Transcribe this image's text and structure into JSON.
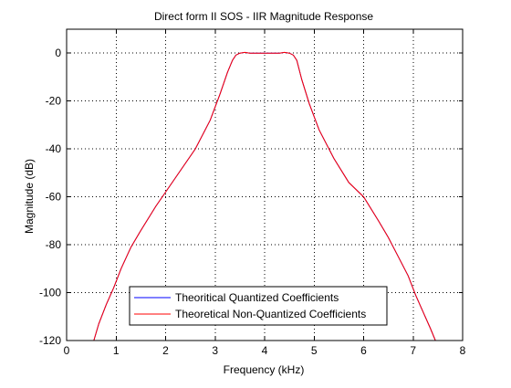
{
  "chart_data": {
    "type": "line",
    "title": "Direct form II SOS - IIR Magnitude Response",
    "xlabel": "Frequency (kHz)",
    "ylabel": "Magnitude (dB)",
    "xlim": [
      0,
      8
    ],
    "ylim": [
      -120,
      10
    ],
    "xticks": [
      0,
      1,
      2,
      3,
      4,
      5,
      6,
      7,
      8
    ],
    "yticks": [
      0,
      -20,
      -40,
      -60,
      -80,
      -100,
      -120
    ],
    "grid": true,
    "legend_position": "bottom-left",
    "series": [
      {
        "name": "Theoritical Quantized Coefficients",
        "color": "#0000ff",
        "x": [
          0.55,
          0.65,
          0.8,
          0.95,
          1.1,
          1.3,
          1.5,
          1.8,
          2.0,
          2.3,
          2.6,
          2.9,
          3.1,
          3.25,
          3.35,
          3.42,
          3.5,
          3.6,
          3.7,
          3.8,
          3.9,
          4.0,
          4.1,
          4.2,
          4.3,
          4.4,
          4.5,
          4.58,
          4.65,
          4.75,
          4.9,
          5.1,
          5.4,
          5.7,
          6.0,
          6.3,
          6.5,
          6.7,
          6.9,
          7.05,
          7.2,
          7.35,
          7.45
        ],
        "y": [
          -120,
          -113,
          -105,
          -98,
          -90,
          -81,
          -74,
          -64,
          -58,
          -49,
          -40,
          -28,
          -17,
          -8,
          -3,
          -0.8,
          0,
          0.3,
          0,
          0,
          0,
          0,
          0,
          0,
          0,
          0.3,
          0,
          -0.8,
          -3,
          -11,
          -21,
          -32,
          -44,
          -54,
          -60,
          -70,
          -77,
          -85,
          -93,
          -101,
          -108,
          -115,
          -120
        ]
      },
      {
        "name": "Theoretical Non-Quantized Coefficients",
        "color": "#ff0000",
        "x": [
          0.55,
          0.65,
          0.8,
          0.95,
          1.1,
          1.3,
          1.5,
          1.8,
          2.0,
          2.3,
          2.6,
          2.9,
          3.1,
          3.25,
          3.35,
          3.42,
          3.5,
          3.6,
          3.7,
          3.8,
          3.9,
          4.0,
          4.1,
          4.2,
          4.3,
          4.4,
          4.5,
          4.58,
          4.65,
          4.75,
          4.9,
          5.1,
          5.4,
          5.7,
          6.0,
          6.3,
          6.5,
          6.7,
          6.9,
          7.05,
          7.2,
          7.35,
          7.45
        ],
        "y": [
          -120,
          -113,
          -105,
          -98,
          -90,
          -81,
          -74,
          -64,
          -58,
          -49,
          -40,
          -28,
          -17,
          -8,
          -3,
          -0.8,
          0,
          0.3,
          0,
          0,
          0,
          0,
          0,
          0,
          0,
          0.3,
          0,
          -0.8,
          -3,
          -11,
          -21,
          -32,
          -44,
          -54,
          -60,
          -70,
          -77,
          -85,
          -93,
          -101,
          -108,
          -115,
          -120
        ]
      }
    ]
  }
}
